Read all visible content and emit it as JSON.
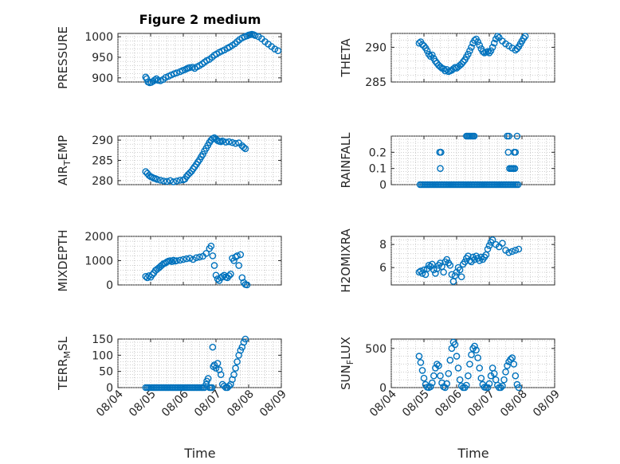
{
  "figure": {
    "title": "Figure 2 medium",
    "xlabel": "Time"
  },
  "colors": {
    "series": "#0072BD",
    "axes": "#262626",
    "grid": "#b0b0b0"
  },
  "chart_data": [
    {
      "type": "scatter",
      "id": "pressure",
      "ylabel": "PRESSURE",
      "ylabel_parts": [
        "PRESSURE"
      ],
      "ylim": [
        890,
        1008
      ],
      "yticks": [
        900,
        950,
        1000
      ],
      "ytick_labels": [
        "900",
        "950",
        "1000"
      ],
      "xlim": [
        "08/04",
        "08/09"
      ],
      "xticks": [
        "08/04",
        "08/05",
        "08/06",
        "08/07",
        "08/08",
        "08/09"
      ],
      "show_xticklabels": false,
      "grid": true,
      "x": [
        4.85,
        4.88,
        4.92,
        4.97,
        5.02,
        5.08,
        5.13,
        5.18,
        5.23,
        5.3,
        5.38,
        5.46,
        5.55,
        5.63,
        5.72,
        5.8,
        5.9,
        5.98,
        6.05,
        6.1,
        6.15,
        6.2,
        6.28,
        6.35,
        6.42,
        6.5,
        6.58,
        6.65,
        6.72,
        6.8,
        6.88,
        6.95,
        7.02,
        7.1,
        7.18,
        7.26,
        7.35,
        7.42,
        7.5,
        7.58,
        7.65,
        7.72,
        7.8,
        7.88,
        7.95,
        8.0,
        8.05,
        8.1,
        8.15,
        8.2,
        8.3,
        8.4,
        8.5,
        8.6,
        8.7,
        8.8,
        8.9
      ],
      "y": [
        902,
        898,
        890,
        888,
        889,
        892,
        895,
        898,
        894,
        893,
        896,
        901,
        904,
        907,
        910,
        912,
        915,
        918,
        920,
        922,
        924,
        925,
        926,
        923,
        927,
        930,
        934,
        938,
        942,
        945,
        950,
        955,
        958,
        962,
        965,
        968,
        972,
        975,
        979,
        983,
        988,
        993,
        997,
        1000,
        1002,
        1004,
        1005,
        1006,
        1005,
        1003,
        1000,
        995,
        988,
        982,
        976,
        970,
        966
      ]
    },
    {
      "type": "scatter",
      "id": "theta",
      "ylabel": "THETA",
      "ylabel_parts": [
        "THETA"
      ],
      "ylim": [
        285,
        292
      ],
      "yticks": [
        285,
        290
      ],
      "ytick_labels": [
        "285",
        "290"
      ],
      "xlim": [
        "08/04",
        "08/09"
      ],
      "xticks": [
        "08/04",
        "08/05",
        "08/06",
        "08/07",
        "08/08",
        "08/09"
      ],
      "show_xticklabels": false,
      "grid": true,
      "x": [
        4.85,
        4.9,
        4.95,
        5.0,
        5.05,
        5.1,
        5.15,
        5.2,
        5.25,
        5.3,
        5.35,
        5.4,
        5.45,
        5.5,
        5.55,
        5.6,
        5.65,
        5.7,
        5.75,
        5.8,
        5.85,
        5.9,
        5.95,
        6.0,
        6.05,
        6.1,
        6.15,
        6.2,
        6.25,
        6.3,
        6.35,
        6.4,
        6.45,
        6.5,
        6.55,
        6.6,
        6.65,
        6.7,
        6.75,
        6.8,
        6.85,
        6.9,
        6.95,
        7.0,
        7.05,
        7.1,
        7.15,
        7.2,
        7.25,
        7.3,
        7.4,
        7.5,
        7.6,
        7.7,
        7.8,
        7.85,
        7.9,
        7.95,
        8.0,
        8.05,
        8.1
      ],
      "y": [
        290.6,
        290.8,
        290.4,
        290.2,
        289.9,
        289.5,
        289.0,
        288.7,
        288.9,
        288.4,
        288.0,
        287.7,
        287.4,
        287.2,
        287.0,
        286.9,
        286.6,
        286.8,
        286.5,
        286.6,
        286.7,
        286.9,
        287.1,
        287.0,
        287.2,
        287.4,
        287.6,
        287.9,
        288.2,
        288.6,
        289.0,
        289.5,
        290.0,
        290.6,
        291.0,
        291.2,
        290.8,
        290.3,
        289.8,
        289.4,
        289.2,
        289.3,
        289.4,
        289.2,
        289.5,
        290.0,
        290.6,
        291.2,
        291.6,
        291.4,
        290.9,
        290.5,
        290.2,
        289.9,
        289.6,
        289.8,
        290.1,
        290.5,
        290.9,
        291.3,
        291.6
      ]
    },
    {
      "type": "scatter",
      "id": "air_temp",
      "ylabel": "AIR_TEMP",
      "ylabel_parts": [
        "AIR",
        "T",
        "EMP"
      ],
      "ylim": [
        279,
        291
      ],
      "yticks": [
        280,
        285,
        290
      ],
      "ytick_labels": [
        "280",
        "285",
        "290"
      ],
      "xlim": [
        "08/04",
        "08/09"
      ],
      "xticks": [
        "08/04",
        "08/05",
        "08/06",
        "08/07",
        "08/08",
        "08/09"
      ],
      "show_xticklabels": false,
      "grid": true,
      "x": [
        4.85,
        4.9,
        4.95,
        5.0,
        5.05,
        5.1,
        5.15,
        5.2,
        5.3,
        5.4,
        5.5,
        5.6,
        5.7,
        5.8,
        5.9,
        6.0,
        6.05,
        6.1,
        6.15,
        6.2,
        6.25,
        6.3,
        6.35,
        6.4,
        6.45,
        6.5,
        6.55,
        6.6,
        6.65,
        6.7,
        6.75,
        6.8,
        6.85,
        6.9,
        6.95,
        7.0,
        7.05,
        7.1,
        7.15,
        7.2,
        7.3,
        7.4,
        7.5,
        7.6,
        7.7,
        7.8,
        7.85,
        7.9
      ],
      "y": [
        282.2,
        281.8,
        281.3,
        281.0,
        280.8,
        280.6,
        280.5,
        280.3,
        280.1,
        279.9,
        279.8,
        280.0,
        279.7,
        279.9,
        280.1,
        280.2,
        280.4,
        281.0,
        281.5,
        281.9,
        282.3,
        282.9,
        283.4,
        284.0,
        284.6,
        285.2,
        285.9,
        286.5,
        287.3,
        288.0,
        288.7,
        289.4,
        290.0,
        290.4,
        290.6,
        290.3,
        289.9,
        289.7,
        289.6,
        289.8,
        289.5,
        289.6,
        289.4,
        289.2,
        289.3,
        288.6,
        288.2,
        287.9
      ]
    },
    {
      "type": "scatter",
      "id": "rainfall",
      "ylabel": "RAINFALL",
      "ylabel_parts": [
        "RAINFALL"
      ],
      "ylim": [
        0,
        0.3
      ],
      "yticks": [
        0,
        0.1,
        0.2
      ],
      "ytick_labels": [
        "0",
        "0.1",
        "0.2"
      ],
      "xlim": [
        "08/04",
        "08/09"
      ],
      "xticks": [
        "08/04",
        "08/05",
        "08/06",
        "08/07",
        "08/08",
        "08/09"
      ],
      "show_xticklabels": false,
      "grid": true,
      "x": [
        4.88,
        4.93,
        4.98,
        5.03,
        5.08,
        5.13,
        5.18,
        5.23,
        5.28,
        5.33,
        5.38,
        5.43,
        5.48,
        5.53,
        5.58,
        5.63,
        5.68,
        5.73,
        5.78,
        5.83,
        5.88,
        5.93,
        5.98,
        6.03,
        6.08,
        6.13,
        6.18,
        6.23,
        6.28,
        6.33,
        6.38,
        6.43,
        6.48,
        6.53,
        6.58,
        6.63,
        6.68,
        6.73,
        6.78,
        6.83,
        6.88,
        6.93,
        6.98,
        7.03,
        7.08,
        7.13,
        7.18,
        7.23,
        7.28,
        7.33,
        7.38,
        7.43,
        7.48,
        7.53,
        7.58,
        7.63,
        7.68,
        7.73,
        7.78,
        7.83,
        7.88,
        5.48,
        5.52,
        5.5,
        6.3,
        6.34,
        6.38,
        6.42,
        6.46,
        6.5,
        6.54,
        7.55,
        7.6,
        7.62,
        7.58,
        7.66,
        7.7,
        7.74,
        7.78,
        7.76,
        7.8,
        7.85
      ],
      "y": [
        0,
        0,
        0,
        0,
        0,
        0,
        0,
        0,
        0,
        0,
        0,
        0,
        0,
        0,
        0,
        0,
        0,
        0,
        0,
        0,
        0,
        0,
        0,
        0,
        0,
        0,
        0,
        0,
        0,
        0,
        0,
        0,
        0,
        0,
        0,
        0,
        0,
        0,
        0,
        0,
        0,
        0,
        0,
        0,
        0,
        0,
        0,
        0,
        0,
        0,
        0,
        0,
        0,
        0,
        0,
        0,
        0,
        0,
        0,
        0,
        0,
        0.2,
        0.2,
        0.1,
        0.3,
        0.3,
        0.3,
        0.3,
        0.3,
        0.3,
        0.3,
        0.3,
        0.3,
        0.1,
        0.2,
        0.1,
        0.1,
        0.1,
        0.1,
        0.2,
        0.2,
        0.3
      ]
    },
    {
      "type": "scatter",
      "id": "mixdepth",
      "ylabel": "MIXDEPTH",
      "ylabel_parts": [
        "MIXDEPTH"
      ],
      "ylim": [
        0,
        2000
      ],
      "yticks": [
        0,
        1000,
        2000
      ],
      "ytick_labels": [
        "0",
        "1000",
        "2000"
      ],
      "xlim": [
        "08/04",
        "08/09"
      ],
      "xticks": [
        "08/04",
        "08/05",
        "08/06",
        "08/07",
        "08/08",
        "08/09"
      ],
      "show_xticklabels": false,
      "grid": true,
      "x": [
        4.85,
        4.9,
        4.95,
        5.0,
        5.05,
        5.1,
        5.15,
        5.2,
        5.25,
        5.3,
        5.35,
        5.4,
        5.45,
        5.5,
        5.55,
        5.6,
        5.65,
        5.7,
        5.75,
        5.8,
        5.9,
        6.0,
        6.1,
        6.2,
        6.3,
        6.4,
        6.5,
        6.6,
        6.7,
        6.8,
        6.85,
        6.9,
        6.95,
        7.0,
        7.05,
        7.1,
        7.15,
        7.2,
        7.25,
        7.3,
        7.35,
        7.4,
        7.45,
        7.5,
        7.55,
        7.6,
        7.65,
        7.7,
        7.75,
        7.8,
        7.85,
        7.9,
        7.95
      ],
      "y": [
        350,
        300,
        380,
        320,
        420,
        500,
        600,
        650,
        700,
        760,
        820,
        880,
        900,
        950,
        980,
        1000,
        960,
        1020,
        980,
        1000,
        1020,
        1050,
        1080,
        1100,
        1050,
        1120,
        1150,
        1180,
        1300,
        1500,
        1600,
        1200,
        800,
        400,
        250,
        180,
        300,
        350,
        400,
        320,
        300,
        380,
        450,
        1100,
        1000,
        1150,
        1200,
        800,
        1250,
        300,
        100,
        20,
        0
      ]
    },
    {
      "type": "scatter",
      "id": "h2omixra",
      "ylabel": "H2OMIXRA",
      "ylabel_parts": [
        "H2OMIXRA"
      ],
      "ylim": [
        4.5,
        8.7
      ],
      "yticks": [
        6,
        8
      ],
      "ytick_labels": [
        "6",
        "8"
      ],
      "xlim": [
        "08/04",
        "08/09"
      ],
      "xticks": [
        "08/04",
        "08/05",
        "08/06",
        "08/07",
        "08/08",
        "08/09"
      ],
      "show_xticklabels": false,
      "grid": true,
      "x": [
        4.85,
        4.9,
        4.95,
        5.0,
        5.05,
        5.1,
        5.15,
        5.2,
        5.25,
        5.3,
        5.35,
        5.4,
        5.45,
        5.5,
        5.55,
        5.6,
        5.65,
        5.7,
        5.75,
        5.8,
        5.85,
        5.9,
        5.95,
        6.0,
        6.05,
        6.1,
        6.15,
        6.2,
        6.25,
        6.3,
        6.35,
        6.4,
        6.45,
        6.5,
        6.55,
        6.6,
        6.65,
        6.7,
        6.75,
        6.8,
        6.85,
        6.9,
        6.95,
        7.0,
        7.05,
        7.1,
        7.2,
        7.3,
        7.4,
        7.5,
        7.6,
        7.7,
        7.8,
        7.9
      ],
      "y": [
        5.6,
        5.7,
        5.5,
        5.8,
        5.4,
        5.9,
        6.2,
        6.1,
        6.3,
        5.8,
        5.5,
        5.9,
        6.2,
        6.4,
        6.1,
        5.6,
        6.5,
        6.7,
        6.4,
        6.2,
        5.4,
        4.8,
        5.3,
        5.6,
        6.0,
        5.8,
        5.2,
        6.3,
        6.5,
        6.8,
        7.0,
        6.6,
        6.5,
        6.9,
        6.7,
        7.0,
        6.8,
        6.6,
        6.9,
        6.7,
        6.9,
        7.1,
        7.6,
        7.9,
        8.2,
        8.4,
        8.0,
        7.8,
        8.1,
        7.5,
        7.3,
        7.4,
        7.5,
        7.6
      ]
    },
    {
      "type": "scatter",
      "id": "terr_msl",
      "ylabel": "TERR_MSL",
      "ylabel_parts": [
        "TERR",
        "M",
        "SL"
      ],
      "ylim": [
        0,
        150
      ],
      "yticks": [
        0,
        50,
        100,
        150
      ],
      "ytick_labels": [
        "0",
        "50",
        "100",
        "150"
      ],
      "xlim": [
        "08/04",
        "08/09"
      ],
      "xticks": [
        "08/04",
        "08/05",
        "08/06",
        "08/07",
        "08/08",
        "08/09"
      ],
      "xtick_labels": [
        "08/04",
        "08/05",
        "08/06",
        "08/07",
        "08/08",
        "08/09"
      ],
      "show_xticklabels": true,
      "grid": true,
      "x": [
        4.85,
        4.9,
        4.95,
        5.0,
        5.05,
        5.1,
        5.15,
        5.2,
        5.25,
        5.3,
        5.35,
        5.4,
        5.45,
        5.5,
        5.55,
        5.6,
        5.65,
        5.7,
        5.75,
        5.8,
        5.85,
        5.9,
        5.95,
        6.0,
        6.05,
        6.1,
        6.15,
        6.2,
        6.25,
        6.3,
        6.35,
        6.4,
        6.45,
        6.5,
        6.55,
        6.6,
        6.65,
        6.7,
        6.72,
        6.76,
        6.8,
        6.84,
        6.88,
        6.92,
        6.95,
        7.0,
        7.05,
        7.1,
        7.15,
        7.2,
        7.25,
        7.3,
        7.35,
        7.4,
        7.45,
        7.5,
        7.55,
        7.6,
        7.65,
        7.7,
        7.75,
        7.8,
        7.85,
        7.9,
        6.9
      ],
      "y": [
        0,
        0,
        0,
        0,
        0,
        0,
        0,
        0,
        0,
        0,
        0,
        0,
        0,
        0,
        0,
        0,
        0,
        0,
        0,
        0,
        0,
        0,
        0,
        0,
        0,
        0,
        0,
        0,
        0,
        0,
        0,
        0,
        0,
        0,
        0,
        0,
        0,
        10,
        20,
        28,
        0,
        0,
        0,
        65,
        70,
        60,
        75,
        55,
        40,
        10,
        5,
        0,
        0,
        5,
        10,
        25,
        40,
        60,
        80,
        100,
        115,
        125,
        140,
        150,
        125
      ]
    },
    {
      "type": "scatter",
      "id": "sun_flux",
      "ylabel": "SUN_FLUX",
      "ylabel_parts": [
        "SUN",
        "F",
        "LUX"
      ],
      "ylim": [
        0,
        620
      ],
      "yticks": [
        0,
        500
      ],
      "ytick_labels": [
        "0",
        "500"
      ],
      "xlim": [
        "08/04",
        "08/09"
      ],
      "xticks": [
        "08/04",
        "08/05",
        "08/06",
        "08/07",
        "08/08",
        "08/09"
      ],
      "xtick_labels": [
        "08/04",
        "08/05",
        "08/06",
        "08/07",
        "08/08",
        "08/09"
      ],
      "show_xticklabels": true,
      "grid": true,
      "x": [
        4.85,
        4.9,
        4.95,
        5.0,
        5.05,
        5.1,
        5.15,
        5.2,
        5.25,
        5.3,
        5.35,
        5.4,
        5.45,
        5.5,
        5.55,
        5.6,
        5.65,
        5.7,
        5.75,
        5.8,
        5.85,
        5.9,
        5.95,
        6.0,
        6.05,
        6.1,
        6.15,
        6.2,
        6.25,
        6.3,
        6.35,
        6.4,
        6.45,
        6.5,
        6.55,
        6.6,
        6.65,
        6.7,
        6.75,
        6.8,
        6.85,
        6.9,
        6.95,
        7.0,
        7.05,
        7.1,
        7.15,
        7.2,
        7.25,
        7.3,
        7.35,
        7.4,
        7.45,
        7.5,
        7.55,
        7.6,
        7.65,
        7.7,
        7.75,
        7.8,
        7.85,
        7.9
      ],
      "y": [
        400,
        320,
        220,
        120,
        40,
        5,
        0,
        10,
        60,
        150,
        250,
        300,
        280,
        150,
        60,
        10,
        0,
        50,
        180,
        350,
        500,
        580,
        550,
        400,
        250,
        100,
        20,
        0,
        0,
        30,
        150,
        300,
        420,
        500,
        530,
        480,
        380,
        250,
        120,
        40,
        5,
        0,
        0,
        50,
        150,
        250,
        180,
        100,
        30,
        0,
        0,
        20,
        100,
        200,
        280,
        330,
        360,
        380,
        300,
        150,
        40,
        0
      ]
    }
  ]
}
